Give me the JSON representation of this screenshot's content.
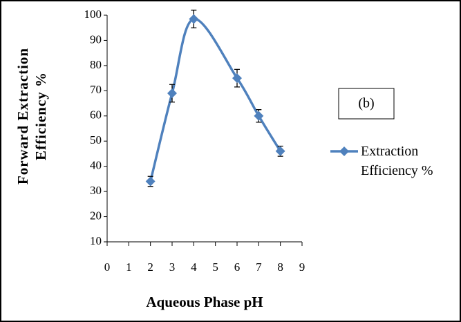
{
  "chart_data": {
    "type": "line",
    "xlabel": "Aqueous Phase pH",
    "ylabel": "Forward Extraction Efficiency %",
    "annotation": "(b)",
    "x": [
      2,
      3,
      4,
      6,
      7,
      8
    ],
    "series": [
      {
        "name": "Extraction Efficiency %",
        "color": "#4f81bd",
        "values": [
          34,
          69,
          98.5,
          75,
          60,
          46
        ],
        "errors": [
          2,
          3.5,
          3.5,
          3.5,
          2.5,
          2
        ]
      }
    ],
    "xlim": [
      0,
      9
    ],
    "xticks": [
      0,
      1,
      2,
      3,
      4,
      5,
      6,
      7,
      8,
      9
    ],
    "ylim": [
      10,
      100
    ],
    "yticks": [
      10,
      20,
      30,
      40,
      50,
      60,
      70,
      80,
      90,
      100
    ],
    "smooth": true
  }
}
